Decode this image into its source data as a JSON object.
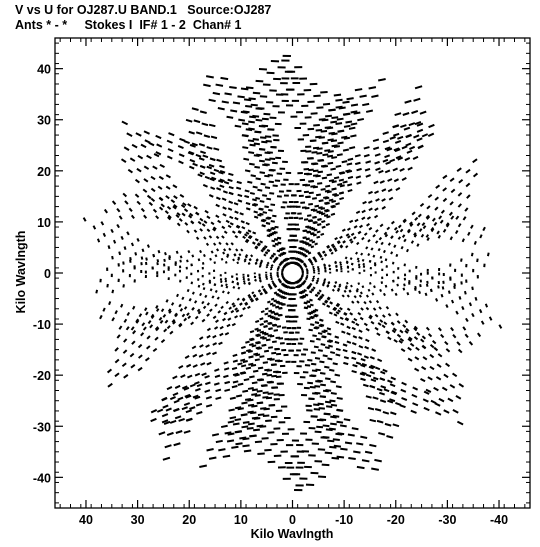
{
  "header": {
    "line1": "V vs U for OJ287.U BAND.1   Source:OJ287",
    "line2": "Ants * - *     Stokes I  IF# 1 - 2  Chan# 1"
  },
  "chart_data": {
    "type": "scatter",
    "title": "V vs U for OJ287.U BAND.1   Source:OJ287",
    "subtitle": "Ants * - *     Stokes I  IF# 1 - 2  Chan# 1",
    "xlabel": "Kilo Wavlngth",
    "ylabel": "Kilo Wavlngth",
    "xlim": [
      46,
      -46
    ],
    "ylim": [
      -46,
      46
    ],
    "x_reversed": true,
    "grid": false,
    "xticks": [
      40,
      30,
      20,
      10,
      0,
      -10,
      -20,
      -30,
      -40
    ],
    "yticks": [
      -40,
      -30,
      -20,
      -10,
      0,
      10,
      20,
      30,
      40
    ],
    "mark": "short dash",
    "tracks": [
      {
        "angle_deg": 118,
        "r_min": 2,
        "r_max": 43,
        "spokes": 6
      },
      {
        "angle_deg": 106,
        "r_min": 2,
        "r_max": 41,
        "spokes": 5
      },
      {
        "angle_deg": 96,
        "r_min": 2,
        "r_max": 43,
        "spokes": 5
      },
      {
        "angle_deg": 86,
        "r_min": 2,
        "r_max": 42,
        "spokes": 5
      },
      {
        "angle_deg": 70,
        "r_min": 2,
        "r_max": 40,
        "spokes": 4
      },
      {
        "angle_deg": 58,
        "r_min": 2,
        "r_max": 45,
        "spokes": 6
      },
      {
        "angle_deg": 46,
        "r_min": 2,
        "r_max": 40,
        "spokes": 4
      },
      {
        "angle_deg": 34,
        "r_min": 2,
        "r_max": 39,
        "spokes": 5
      },
      {
        "angle_deg": 22,
        "r_min": 2,
        "r_max": 40,
        "spokes": 4
      },
      {
        "angle_deg": 12,
        "r_min": 2,
        "r_max": 45,
        "spokes": 5
      },
      {
        "angle_deg": 178,
        "r_min": 2,
        "r_max": 43,
        "spokes": 6
      },
      {
        "angle_deg": 166,
        "r_min": 2,
        "r_max": 42,
        "spokes": 5
      },
      {
        "angle_deg": 154,
        "r_min": 2,
        "r_max": 44,
        "spokes": 5
      },
      {
        "angle_deg": 142,
        "r_min": 2,
        "r_max": 40,
        "spokes": 4
      },
      {
        "angle_deg": 130,
        "r_min": 2,
        "r_max": 38,
        "spokes": 4
      }
    ],
    "point_spacing": 2.2
  }
}
